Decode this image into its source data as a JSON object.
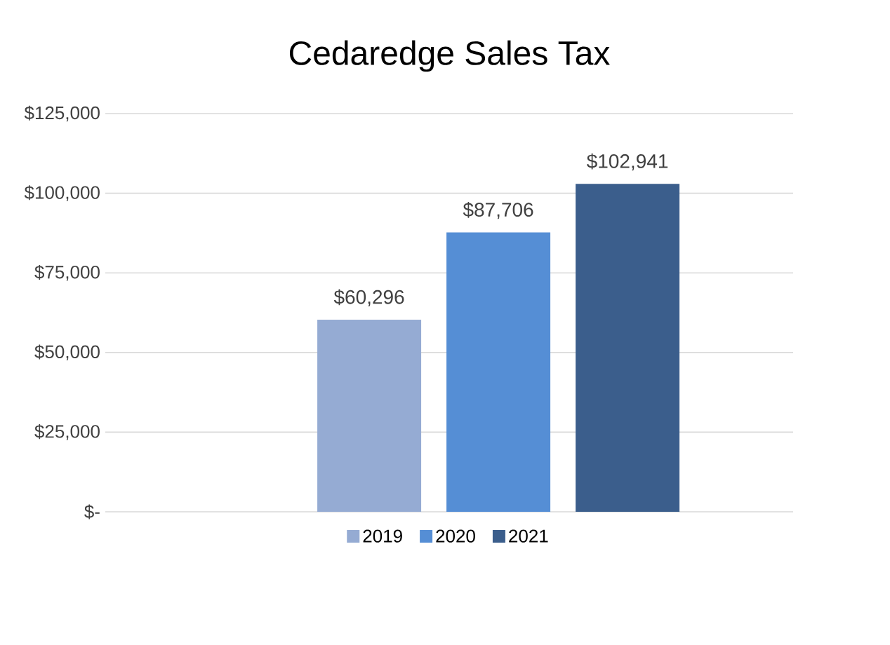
{
  "chart_data": {
    "type": "bar",
    "title": "Cedaredge Sales Tax",
    "categories": [
      null
    ],
    "series": [
      {
        "name": "2019",
        "color": "#95abd3",
        "values": [
          60296
        ],
        "value_labels": [
          "$60,296"
        ]
      },
      {
        "name": "2020",
        "color": "#558ed5",
        "values": [
          87706
        ],
        "value_labels": [
          "$87,706"
        ]
      },
      {
        "name": "2021",
        "color": "#3b5e8c",
        "values": [
          102941
        ],
        "value_labels": [
          "$102,941"
        ]
      }
    ],
    "ylim": [
      0,
      125000
    ],
    "yticks": [
      {
        "value": 0,
        "label": "$-"
      },
      {
        "value": 25000,
        "label": "$25,000"
      },
      {
        "value": 50000,
        "label": "$50,000"
      },
      {
        "value": 75000,
        "label": "$75,000"
      },
      {
        "value": 100000,
        "label": "$100,000"
      },
      {
        "value": 125000,
        "label": "$125,000"
      }
    ],
    "grid": "y",
    "legend": "bottom"
  }
}
